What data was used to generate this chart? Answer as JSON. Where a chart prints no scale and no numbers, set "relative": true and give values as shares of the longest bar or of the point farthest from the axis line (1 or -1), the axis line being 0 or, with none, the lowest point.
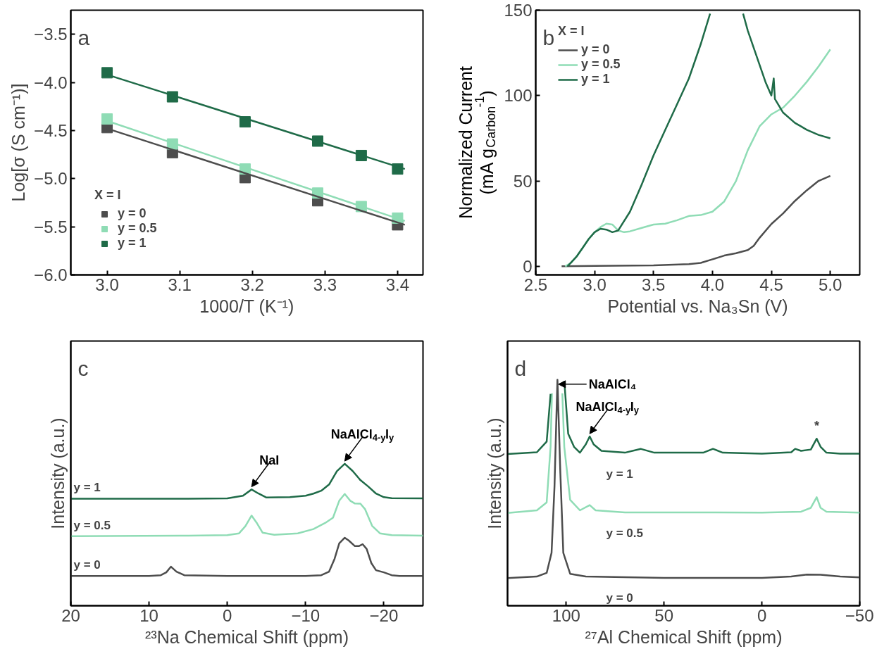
{
  "chart_data": [
    {
      "type": "scatter",
      "xlabel": "1000/T (K⁻¹)",
      "ylabel": "Log[σ (S cm⁻¹)]",
      "legend_title": "X = I",
      "legend": "bottom left",
      "marker": "square",
      "annotations": [
        "a"
      ],
      "x": [
        3.0,
        3.09,
        3.19,
        3.29,
        3.35,
        3.4
      ],
      "xlim": [
        2.95,
        3.435
      ],
      "xticks": [
        {
          "value": 3,
          "label": "3.0"
        },
        3.1,
        3.2,
        3.3,
        3.4
      ],
      "ylim": [
        -6.0,
        -3.25
      ],
      "yticks": [
        {
          "value": -6,
          "label": "−6.0"
        },
        {
          "value": -5.5,
          "label": "−5.5"
        },
        {
          "value": -5,
          "label": "−5.0"
        },
        {
          "value": -4.5,
          "label": "−4.5"
        },
        {
          "value": -4,
          "label": "−4.0"
        },
        {
          "value": -3.5,
          "label": "−3.5"
        }
      ],
      "series": [
        {
          "name": "y = 0",
          "color": "#4d4d4d",
          "values": [
            -4.47,
            -4.73,
            -4.99,
            -5.23,
            null,
            -5.48
          ]
        },
        {
          "name": "y = 0.5",
          "color": "#8fdcb5",
          "values": [
            -4.38,
            -4.64,
            -4.9,
            -5.15,
            -5.29,
            -5.41
          ]
        },
        {
          "name": "y = 1",
          "color": "#1f6b48",
          "values": [
            -3.9,
            -4.15,
            -4.41,
            -4.61,
            -4.76,
            -4.9
          ]
        },
        {
          "type": "line",
          "marker": "none",
          "color": "#4d4d4d",
          "x": [
            3.0,
            3.41
          ],
          "values": [
            -4.48,
            -5.48
          ]
        },
        {
          "type": "line",
          "marker": "none",
          "color": "#8fdcb5",
          "x": [
            3.0,
            3.41
          ],
          "values": [
            -4.4,
            -5.44
          ]
        },
        {
          "type": "line",
          "marker": "none",
          "color": "#1f6b48",
          "x": [
            3.0,
            3.41
          ],
          "values": [
            -3.92,
            -4.9
          ]
        }
      ]
    },
    {
      "type": "line",
      "xlabel": "Potential vs. Na₃Sn (V)",
      "ylabel": "Normalized Current\n(mA g$_{Carbon}$$^{-1}$)",
      "legend_title": "X = I",
      "legend": "top left",
      "annotations": [
        "b"
      ],
      "xlim": [
        2.5,
        5.25
      ],
      "xticks": [
        2.5,
        {
          "value": 3,
          "label": "3.0"
        },
        3.5,
        {
          "value": 4,
          "label": "4.0"
        },
        4.5,
        {
          "value": 5,
          "label": "5.0"
        }
      ],
      "ylim": [
        -5,
        150
      ],
      "yticks": [
        0,
        50,
        100,
        150
      ],
      "series": [
        {
          "name": "y = 0",
          "color": "#4d4d4d",
          "x": [
            2.72,
            3.0,
            3.5,
            3.8,
            3.9,
            4.0,
            4.1,
            4.2,
            4.3,
            4.35,
            4.4,
            4.5,
            4.6,
            4.7,
            4.8,
            4.9,
            5.0
          ],
          "values": [
            0,
            0.3,
            0.6,
            1.3,
            2,
            4.1,
            6.3,
            7.7,
            9.5,
            12,
            16.7,
            24.8,
            31,
            38.3,
            44.5,
            50,
            53
          ]
        },
        {
          "name": "y = 0.5",
          "color": "#8fdcb5",
          "x": [
            2.75,
            2.8,
            2.85,
            2.9,
            2.95,
            3.0,
            3.05,
            3.1,
            3.15,
            3.2,
            3.25,
            3.3,
            3.4,
            3.5,
            3.6,
            3.7,
            3.8,
            3.9,
            4.0,
            4.1,
            4.2,
            4.3,
            4.4,
            4.5,
            4.6,
            4.7,
            4.8,
            4.9,
            5.0
          ],
          "values": [
            0,
            2,
            6,
            11,
            16,
            20,
            23,
            25,
            24.5,
            21,
            20,
            20.5,
            22.5,
            24.5,
            25,
            27,
            29.5,
            30,
            32,
            38,
            50,
            68,
            82,
            89,
            93,
            100,
            108,
            117,
            127
          ]
        },
        {
          "name": "y = 1",
          "color": "#1f6b48",
          "x": [
            2.77,
            2.85,
            2.9,
            2.95,
            3.0,
            3.05,
            3.1,
            3.15,
            3.2,
            3.3,
            3.4,
            3.5,
            3.6,
            3.7,
            3.8,
            3.9,
            3.98,
            4.1,
            4.26,
            4.3,
            4.4,
            4.45,
            4.5,
            4.52,
            4.53,
            4.6,
            4.7,
            4.75,
            4.8,
            4.9,
            5.0
          ],
          "values": [
            0,
            6,
            11,
            16,
            20,
            22,
            21.5,
            20,
            21,
            32,
            48,
            65,
            80,
            95,
            110,
            130,
            148,
            null,
            148,
            138,
            118,
            108,
            100,
            110,
            98,
            90,
            84,
            82,
            80,
            77,
            75
          ]
        }
      ]
    },
    {
      "type": "line",
      "relative": true,
      "xlabel": "²³Na Chemical Shift (ppm)",
      "ylabel": "Intensity (a.u.)",
      "annotations": [
        "c",
        {
          "text": "NaI",
          "x": -3.1,
          "y": 0.819
        },
        {
          "text": "NaAlCl$_{4-y}$I$_{y}$",
          "x": -15,
          "y": 1.0
        }
      ],
      "xlim": [
        20,
        -25
      ],
      "xticks": [
        20,
        10,
        0,
        {
          "value": -10,
          "label": "−10"
        },
        {
          "value": -20,
          "label": "−20"
        }
      ],
      "series": [
        {
          "name": "y = 0",
          "color": "#4d4d4d",
          "x": [
            20,
            10,
            8.5,
            7.8,
            7.2,
            6.5,
            5.5,
            0,
            -10,
            -12,
            -13,
            -13.7,
            -14.3,
            -15,
            -15.5,
            -16.3,
            -16.8,
            -17.3,
            -17.8,
            -18.4,
            -19,
            -20,
            -21,
            -22,
            -25
          ],
          "values": [
            0.21,
            0.21,
            0.215,
            0.235,
            0.275,
            0.24,
            0.215,
            0.21,
            0.21,
            0.215,
            0.24,
            0.33,
            0.44,
            0.479,
            0.46,
            0.42,
            0.42,
            0.433,
            0.4,
            0.3,
            0.25,
            0.235,
            0.215,
            0.21,
            0.21
          ]
        },
        {
          "name": "y = 0.5",
          "color": "#8fdcb5",
          "x": [
            20,
            5,
            0,
            -1.5,
            -2.3,
            -3.1,
            -3.8,
            -4.5,
            -6,
            -9,
            -11,
            -12.5,
            -13.5,
            -14.3,
            -15,
            -15.7,
            -16.3,
            -17,
            -17.6,
            -18.5,
            -19.5,
            -21,
            -25
          ],
          "values": [
            0.49,
            0.494,
            0.497,
            0.51,
            0.56,
            0.635,
            0.58,
            0.515,
            0.5,
            0.51,
            0.54,
            0.583,
            0.62,
            0.74,
            0.7875,
            0.74,
            0.72,
            0.719,
            0.68,
            0.5625,
            0.51,
            0.497,
            0.494
          ]
        },
        {
          "name": "y = 1",
          "color": "#1f6b48",
          "x": [
            20,
            5,
            0,
            -2,
            -3.1,
            -4,
            -5,
            -8,
            -10,
            -11,
            -12,
            -13,
            -14,
            -15,
            -16,
            -17,
            -18,
            -19,
            -20,
            -21,
            -25
          ],
          "values": [
            0.754,
            0.754,
            0.756,
            0.775,
            0.819,
            0.79,
            0.762,
            0.765,
            0.775,
            0.79,
            0.81,
            0.854,
            0.948,
            1.0,
            0.95,
            0.885,
            0.84,
            0.79,
            0.765,
            0.758,
            0.756
          ]
        }
      ]
    },
    {
      "type": "line",
      "relative": true,
      "xlabel": "²⁷Al Chemical Shift (ppm)",
      "ylabel": "Intensity (a.u.)",
      "annotations": [
        "d",
        {
          "text": "NaAlCl₄",
          "x": 104,
          "y": 0.98
        },
        {
          "text": "NaAlCl$_{4-y}$I$_{y}$",
          "x": 88,
          "y": 0.749
        },
        {
          "text": "*",
          "x": -28,
          "y": 0.739
        }
      ],
      "xlim": [
        130,
        -50
      ],
      "xticks": [
        100,
        50,
        0,
        {
          "value": -50,
          "label": "−50"
        }
      ],
      "series": [
        {
          "name": "y = 0",
          "color": "#4d4d4d",
          "x": [
            130,
            115,
            110,
            107.5,
            106,
            104.5,
            103,
            101.5,
            98,
            90,
            50,
            0,
            -15,
            -23,
            -30,
            -40,
            -50
          ],
          "values": [
            0.122,
            0.129,
            0.145,
            0.234,
            0.527,
            1.0,
            0.586,
            0.234,
            0.141,
            0.129,
            0.123,
            0.123,
            0.129,
            0.138,
            0.137,
            0.129,
            0.125
          ]
        },
        {
          "name": "y = 0.5",
          "color": "#8fdcb5",
          "x": [
            130,
            115,
            110,
            108,
            107.3,
            105,
            102,
            101,
            98,
            93,
            88,
            85,
            70,
            0,
            -20,
            -25,
            -28,
            -30,
            -33,
            -50
          ],
          "values": [
            0.41,
            0.422,
            0.457,
            0.703,
            0.94,
            null,
            0.94,
            0.703,
            0.468,
            0.422,
            0.445,
            0.422,
            0.413,
            0.412,
            0.416,
            0.433,
            0.48,
            0.433,
            0.416,
            0.412
          ]
        },
        {
          "name": "y = 1",
          "color": "#1f6b48",
          "x": [
            130,
            115,
            110,
            108,
            106,
            101,
            99,
            96,
            93,
            90,
            88,
            86,
            82,
            70,
            62,
            55,
            30,
            25,
            20,
            0,
            -15,
            -17,
            -20,
            -25,
            -28,
            -30,
            -33,
            -40,
            -50
          ],
          "values": [
            0.671,
            0.679,
            0.726,
            0.937,
            null,
            0.995,
            0.761,
            0.703,
            0.677,
            0.714,
            0.749,
            0.714,
            0.685,
            0.677,
            0.694,
            0.677,
            0.677,
            0.694,
            0.677,
            0.673,
            0.679,
            0.694,
            0.685,
            0.691,
            0.739,
            0.703,
            0.677,
            0.673,
            0.673
          ]
        }
      ]
    }
  ]
}
